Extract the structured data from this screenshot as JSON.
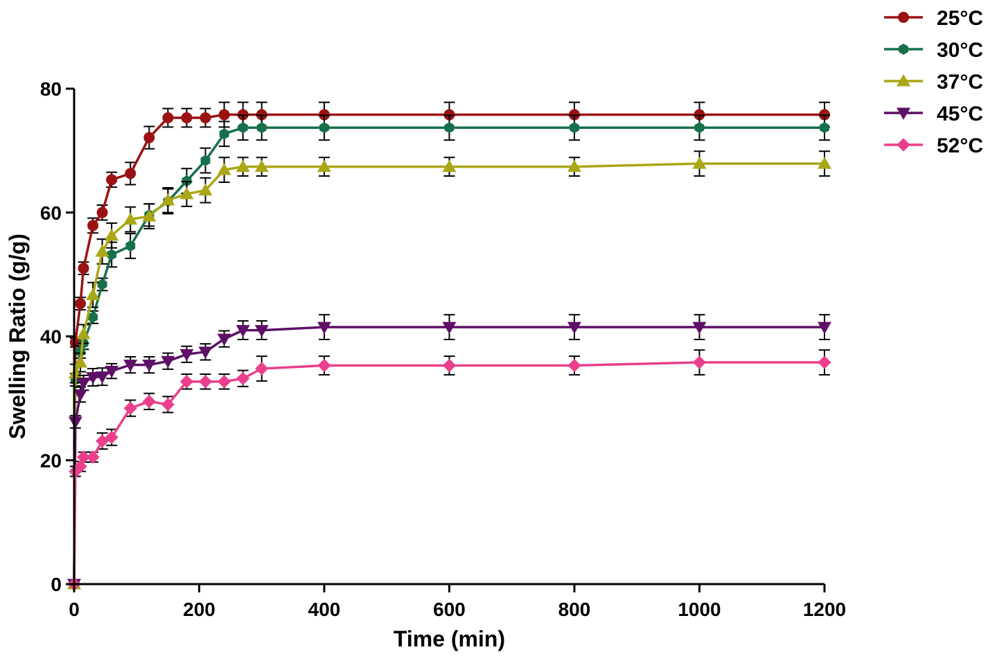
{
  "chart_data": {
    "type": "line",
    "title": "",
    "xlabel": "Time (min)",
    "ylabel": "Swelling Ratio (g/g)",
    "xlim": [
      0,
      1200
    ],
    "ylim": [
      0,
      80
    ],
    "xticks": [
      0,
      200,
      400,
      600,
      800,
      1000,
      1200
    ],
    "yticks": [
      0,
      20,
      40,
      60,
      80
    ],
    "xtick_labels": [
      "0",
      "200",
      "400",
      "600",
      "800",
      "1000",
      "1200"
    ],
    "ytick_labels": [
      "0",
      "20",
      "40",
      "60",
      "80"
    ],
    "grid": false,
    "legend_position": "top-right",
    "series": [
      {
        "name": "25°C",
        "color": "#9b1212",
        "marker": "circle",
        "x": [
          0,
          2,
          10,
          15,
          30,
          45,
          60,
          90,
          120,
          150,
          180,
          210,
          240,
          270,
          300,
          400,
          600,
          800,
          1000,
          1200
        ],
        "y": [
          0,
          39.0,
          45.3,
          51.0,
          57.9,
          60.0,
          65.3,
          66.3,
          72.1,
          75.3,
          75.3,
          75.3,
          75.8,
          75.8,
          75.8,
          75.8,
          75.8,
          75.8,
          75.8,
          75.8
        ],
        "err": [
          0,
          0.7,
          1.0,
          1.0,
          1.2,
          1.2,
          1.2,
          1.8,
          1.8,
          1.5,
          1.5,
          1.5,
          2.0,
          2.0,
          2.0,
          2.0,
          2.0,
          2.0,
          2.0,
          2.0
        ]
      },
      {
        "name": "30°C",
        "color": "#16704a",
        "marker": "hexagon",
        "x": [
          0,
          2,
          10,
          15,
          30,
          45,
          60,
          90,
          120,
          150,
          180,
          210,
          240,
          270,
          300,
          400,
          600,
          800,
          1000,
          1200
        ],
        "y": [
          0,
          33.0,
          37.5,
          38.9,
          43.1,
          48.4,
          53.2,
          54.6,
          59.6,
          61.8,
          65.1,
          68.4,
          72.7,
          73.7,
          73.7,
          73.7,
          73.7,
          73.7,
          73.7,
          73.7
        ],
        "err": [
          0,
          1.0,
          1.0,
          1.0,
          1.0,
          1.0,
          2.0,
          2.0,
          1.8,
          2.0,
          2.0,
          2.0,
          2.0,
          2.0,
          2.0,
          2.0,
          2.0,
          2.0,
          2.0,
          2.0
        ]
      },
      {
        "name": "37°C",
        "color": "#aaa717",
        "marker": "triangle-up",
        "x": [
          0,
          2,
          10,
          15,
          30,
          45,
          60,
          90,
          120,
          150,
          180,
          210,
          240,
          270,
          300,
          400,
          600,
          800,
          1000,
          1200
        ],
        "y": [
          0,
          34.0,
          35.8,
          40.4,
          46.7,
          53.7,
          56.3,
          58.9,
          59.4,
          62.0,
          63.0,
          63.6,
          66.9,
          67.4,
          67.4,
          67.4,
          67.4,
          67.4,
          67.9,
          67.9
        ],
        "err": [
          0,
          1.5,
          1.5,
          1.5,
          2.0,
          2.0,
          2.0,
          2.0,
          2.0,
          2.0,
          2.0,
          2.0,
          2.0,
          1.5,
          1.5,
          1.5,
          1.5,
          1.5,
          2.0,
          2.0
        ]
      },
      {
        "name": "45°C",
        "color": "#5e0f66",
        "marker": "triangle-down",
        "x": [
          0,
          2,
          10,
          15,
          30,
          45,
          60,
          90,
          120,
          150,
          180,
          210,
          240,
          270,
          300,
          400,
          600,
          800,
          1000,
          1200
        ],
        "y": [
          0,
          26.2,
          30.6,
          32.5,
          33.4,
          33.5,
          34.4,
          35.4,
          35.4,
          36.0,
          37.1,
          37.5,
          39.6,
          41.0,
          41.0,
          41.5,
          41.5,
          41.5,
          41.5,
          41.5
        ],
        "err": [
          0,
          1.0,
          1.2,
          1.2,
          1.4,
          1.4,
          1.2,
          1.3,
          1.3,
          1.3,
          1.3,
          1.3,
          1.3,
          1.5,
          1.5,
          2.0,
          2.0,
          2.0,
          2.0,
          2.0
        ]
      },
      {
        "name": "52°C",
        "color": "#ea3f8c",
        "marker": "diamond",
        "x": [
          0,
          2,
          10,
          15,
          30,
          45,
          60,
          90,
          120,
          150,
          180,
          210,
          240,
          270,
          300,
          400,
          600,
          800,
          1000,
          1200
        ],
        "y": [
          0,
          18.2,
          19.0,
          20.5,
          20.5,
          23.1,
          23.7,
          28.4,
          29.5,
          29.0,
          32.7,
          32.7,
          32.7,
          33.2,
          34.8,
          35.3,
          35.3,
          35.3,
          35.8,
          35.8
        ],
        "err": [
          0,
          0.8,
          0.8,
          0.8,
          0.8,
          1.3,
          1.3,
          1.3,
          1.3,
          1.3,
          1.2,
          1.2,
          1.2,
          1.3,
          2.0,
          1.5,
          1.5,
          1.5,
          2.0,
          2.0
        ]
      }
    ]
  }
}
